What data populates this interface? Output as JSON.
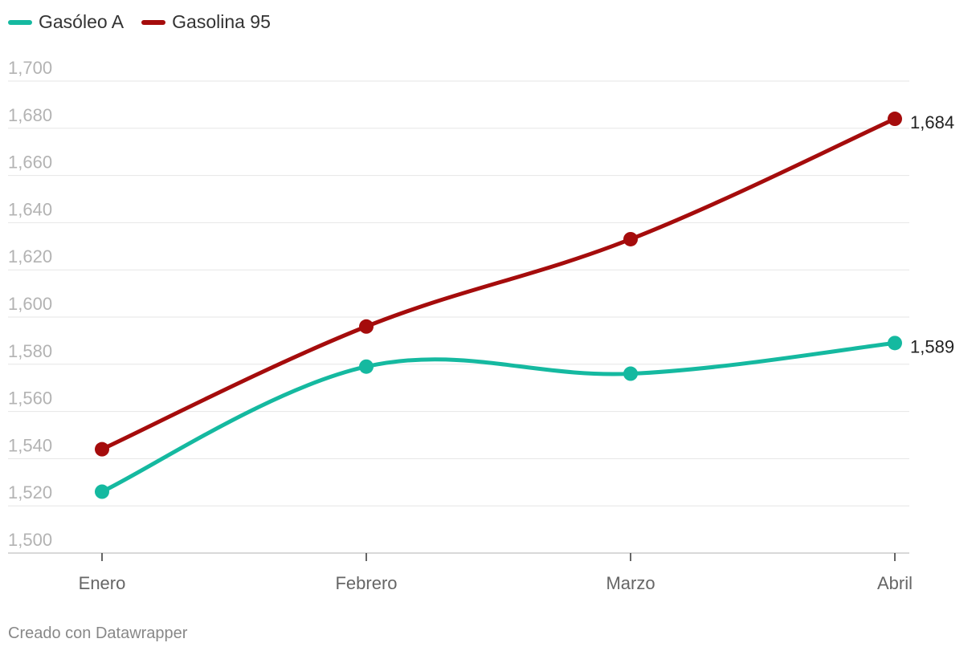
{
  "chart_data": {
    "type": "line",
    "title": "",
    "xlabel": "",
    "ylabel": "",
    "categories": [
      "Enero",
      "Febrero",
      "Marzo",
      "Abril"
    ],
    "ylim": [
      1.5,
      1.7
    ],
    "yticks": [
      1.5,
      1.52,
      1.54,
      1.56,
      1.58,
      1.6,
      1.62,
      1.64,
      1.66,
      1.68,
      1.7
    ],
    "ytick_labels": [
      "1,500",
      "1,520",
      "1,540",
      "1,560",
      "1,580",
      "1,600",
      "1,620",
      "1,640",
      "1,660",
      "1,680",
      "1,700"
    ],
    "grid": true,
    "legend_placement": "top-left",
    "series": [
      {
        "name": "Gasóleo A",
        "color": "#15b9a0",
        "values": [
          1.526,
          1.579,
          1.576,
          1.589
        ],
        "end_label": "1,589"
      },
      {
        "name": "Gasolina 95",
        "color": "#a50c0c",
        "values": [
          1.544,
          1.596,
          1.633,
          1.684
        ],
        "end_label": "1,684"
      }
    ]
  },
  "footer": "Creado con Datawrapper"
}
